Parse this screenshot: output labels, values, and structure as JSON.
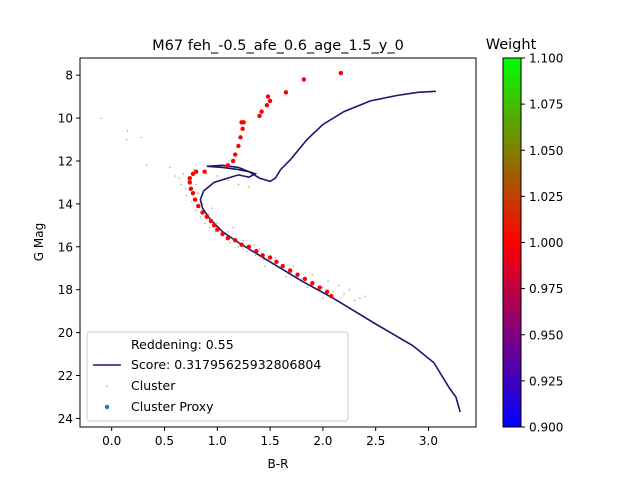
{
  "chart_data": {
    "type": "scatter",
    "title": "M67 feh_-0.5_afe_0.6_age_1.5_y_0",
    "xlabel": "B-R",
    "ylabel": "G Mag",
    "xlim": [
      -0.3,
      3.45
    ],
    "ylim": [
      24.4,
      7.2
    ],
    "y_inverted": true,
    "x_ticks": [
      "0.0",
      "0.5",
      "1.0",
      "1.5",
      "2.0",
      "2.5",
      "3.0"
    ],
    "y_ticks": [
      "8",
      "10",
      "12",
      "14",
      "16",
      "18",
      "20",
      "22",
      "24"
    ],
    "legend": {
      "position": "lower-left",
      "entries": [
        {
          "label": "Reddening: 0.55",
          "marker": "none"
        },
        {
          "label": "Score: 0.31795625932806804",
          "marker": "line",
          "color": "#191970"
        },
        {
          "label": "Cluster",
          "marker": "small-dot",
          "color": "#b5b08a"
        },
        {
          "label": "Cluster Proxy",
          "marker": "dot",
          "color": "#1f77b4"
        }
      ]
    },
    "colorbar": {
      "title": "Weight",
      "range": [
        0.9,
        1.1
      ],
      "ticks": [
        "0.900",
        "0.925",
        "0.950",
        "0.975",
        "1.000",
        "1.025",
        "1.050",
        "1.075",
        "1.100"
      ],
      "colormap": [
        "#0000ff",
        "#ff0000",
        "#00ff00"
      ]
    },
    "series": [
      {
        "name": "Score: 0.31795625932806804",
        "kind": "isochrone",
        "color": "#191970",
        "points": [
          [
            3.3,
            23.7
          ],
          [
            3.26,
            23.0
          ],
          [
            3.2,
            22.6
          ],
          [
            3.05,
            21.4
          ],
          [
            2.85,
            20.6
          ],
          [
            2.5,
            19.6
          ],
          [
            2.1,
            18.4
          ],
          [
            1.8,
            17.6
          ],
          [
            1.6,
            17.0
          ],
          [
            1.4,
            16.4
          ],
          [
            1.2,
            15.8
          ],
          [
            1.05,
            15.3
          ],
          [
            0.93,
            14.7
          ],
          [
            0.86,
            14.2
          ],
          [
            0.84,
            13.8
          ],
          [
            0.87,
            13.4
          ],
          [
            0.97,
            13.0
          ],
          [
            1.1,
            12.8
          ],
          [
            1.2,
            12.65
          ],
          [
            1.3,
            12.75
          ],
          [
            1.36,
            12.6
          ],
          [
            1.3,
            12.5
          ],
          [
            1.2,
            12.4
          ],
          [
            1.05,
            12.3
          ],
          [
            0.9,
            12.25
          ],
          [
            1.05,
            12.2
          ],
          [
            1.2,
            12.3
          ],
          [
            1.3,
            12.5
          ],
          [
            1.4,
            12.8
          ],
          [
            1.5,
            12.95
          ],
          [
            1.55,
            12.8
          ],
          [
            1.6,
            12.4
          ],
          [
            1.7,
            11.9
          ],
          [
            1.85,
            11.0
          ],
          [
            2.0,
            10.3
          ],
          [
            2.2,
            9.7
          ],
          [
            2.45,
            9.2
          ],
          [
            2.7,
            8.95
          ],
          [
            2.9,
            8.8
          ],
          [
            3.07,
            8.75
          ]
        ]
      },
      {
        "name": "Cluster Proxy",
        "kind": "weighted-points",
        "weight": 1.0,
        "points": [
          [
            0.88,
            12.5
          ],
          [
            0.8,
            12.5
          ],
          [
            0.77,
            12.6
          ],
          [
            0.74,
            12.8
          ],
          [
            0.74,
            13.0
          ],
          [
            0.75,
            13.3
          ],
          [
            0.77,
            13.5
          ],
          [
            0.79,
            13.8
          ],
          [
            0.82,
            14.1
          ],
          [
            0.86,
            14.4
          ],
          [
            0.9,
            14.6
          ],
          [
            0.94,
            14.8
          ],
          [
            0.97,
            15.0
          ],
          [
            1.0,
            15.2
          ],
          [
            1.05,
            15.4
          ],
          [
            1.1,
            15.6
          ],
          [
            1.17,
            15.7
          ],
          [
            1.23,
            15.9
          ],
          [
            1.3,
            16.0
          ],
          [
            1.37,
            16.2
          ],
          [
            1.43,
            16.4
          ],
          [
            1.5,
            16.5
          ],
          [
            1.56,
            16.7
          ],
          [
            1.62,
            16.9
          ],
          [
            1.69,
            17.1
          ],
          [
            1.76,
            17.3
          ],
          [
            1.83,
            17.5
          ],
          [
            1.9,
            17.7
          ],
          [
            1.97,
            17.9
          ],
          [
            2.04,
            18.1
          ],
          [
            2.08,
            18.3
          ],
          [
            1.1,
            12.2
          ],
          [
            1.15,
            12.0
          ],
          [
            1.17,
            11.7
          ],
          [
            1.2,
            11.3
          ],
          [
            1.22,
            10.9
          ],
          [
            1.24,
            10.5
          ],
          [
            1.23,
            10.2
          ],
          [
            1.25,
            10.2
          ],
          [
            1.4,
            9.9
          ],
          [
            1.42,
            9.7
          ],
          [
            1.47,
            9.4
          ],
          [
            1.5,
            9.2
          ],
          [
            1.48,
            9.0
          ],
          [
            1.65,
            8.8
          ],
          [
            1.82,
            8.2
          ],
          [
            2.17,
            7.9
          ]
        ]
      },
      {
        "name": "Cluster",
        "kind": "observed-stars",
        "color": "#b5b08a",
        "points": [
          [
            -0.1,
            10.0
          ],
          [
            0.15,
            10.6
          ],
          [
            0.14,
            11.0
          ],
          [
            0.28,
            10.9
          ],
          [
            0.33,
            12.2
          ],
          [
            0.55,
            12.3
          ],
          [
            0.6,
            12.7
          ],
          [
            0.64,
            12.8
          ],
          [
            0.66,
            13.1
          ],
          [
            0.7,
            13.3
          ],
          [
            0.71,
            13.6
          ],
          [
            0.72,
            12.9
          ],
          [
            0.76,
            13.9
          ],
          [
            0.8,
            14.3
          ],
          [
            0.84,
            14.6
          ],
          [
            0.88,
            14.9
          ],
          [
            0.93,
            15.1
          ],
          [
            0.98,
            15.3
          ],
          [
            1.05,
            15.5
          ],
          [
            1.12,
            15.8
          ],
          [
            1.2,
            16.0
          ],
          [
            1.28,
            16.2
          ],
          [
            1.36,
            16.4
          ],
          [
            1.44,
            16.6
          ],
          [
            1.52,
            16.8
          ],
          [
            1.6,
            17.0
          ],
          [
            1.7,
            17.2
          ],
          [
            1.8,
            17.5
          ],
          [
            1.9,
            17.7
          ],
          [
            2.0,
            17.9
          ],
          [
            2.1,
            18.1
          ],
          [
            2.2,
            18.2
          ],
          [
            2.35,
            18.4
          ],
          [
            2.4,
            18.3
          ],
          [
            2.25,
            18.0
          ],
          [
            2.05,
            17.6
          ],
          [
            1.9,
            17.3
          ],
          [
            1.72,
            16.9
          ],
          [
            1.55,
            16.5
          ],
          [
            1.4,
            16.1
          ],
          [
            1.25,
            15.7
          ],
          [
            1.1,
            15.3
          ],
          [
            1.0,
            14.9
          ],
          [
            0.92,
            14.5
          ],
          [
            0.86,
            14.0
          ],
          [
            0.82,
            13.5
          ],
          [
            0.8,
            13.1
          ],
          [
            0.9,
            12.6
          ],
          [
            1.0,
            12.7
          ],
          [
            1.1,
            12.9
          ],
          [
            1.2,
            13.1
          ],
          [
            1.3,
            13.2
          ],
          [
            0.68,
            12.6
          ],
          [
            0.78,
            12.4
          ],
          [
            1.45,
            16.9
          ],
          [
            1.65,
            17.4
          ],
          [
            1.85,
            17.9
          ],
          [
            2.0,
            18.4
          ],
          [
            2.15,
            17.8
          ],
          [
            1.35,
            15.9
          ],
          [
            1.15,
            15.1
          ],
          [
            0.95,
            14.2
          ],
          [
            2.3,
            18.5
          ]
        ]
      }
    ]
  }
}
